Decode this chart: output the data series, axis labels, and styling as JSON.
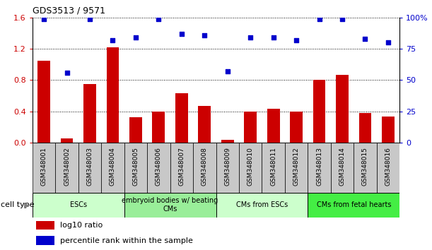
{
  "title": "GDS3513 / 9571",
  "categories": [
    "GSM348001",
    "GSM348002",
    "GSM348003",
    "GSM348004",
    "GSM348005",
    "GSM348006",
    "GSM348007",
    "GSM348008",
    "GSM348009",
    "GSM348010",
    "GSM348011",
    "GSM348012",
    "GSM348013",
    "GSM348014",
    "GSM348015",
    "GSM348016"
  ],
  "log10_ratio": [
    1.05,
    0.05,
    0.75,
    1.22,
    0.32,
    0.4,
    0.63,
    0.47,
    0.03,
    0.4,
    0.43,
    0.4,
    0.8,
    0.87,
    0.38,
    0.33
  ],
  "percentile_rank": [
    99,
    56,
    99,
    82,
    84,
    99,
    87,
    86,
    57,
    84,
    84,
    82,
    99,
    99,
    83,
    80
  ],
  "bar_color": "#cc0000",
  "dot_color": "#0000cc",
  "ylim_left": [
    0,
    1.6
  ],
  "ylim_right": [
    0,
    100
  ],
  "yticks_left": [
    0,
    0.4,
    0.8,
    1.2,
    1.6
  ],
  "yticks_right": [
    0,
    25,
    50,
    75,
    100
  ],
  "ytick_labels_right": [
    "0",
    "25",
    "50",
    "75",
    "100%"
  ],
  "cell_type_groups": [
    {
      "label": "ESCs",
      "start": 0,
      "end": 3,
      "color": "#ccffcc"
    },
    {
      "label": "embryoid bodies w/ beating\nCMs",
      "start": 4,
      "end": 7,
      "color": "#99ee99"
    },
    {
      "label": "CMs from ESCs",
      "start": 8,
      "end": 11,
      "color": "#ccffcc"
    },
    {
      "label": "CMs from fetal hearts",
      "start": 12,
      "end": 15,
      "color": "#44ee44"
    }
  ],
  "legend_items": [
    {
      "label": "log10 ratio",
      "color": "#cc0000"
    },
    {
      "label": "percentile rank within the sample",
      "color": "#0000cc"
    }
  ],
  "cell_type_label": "cell type",
  "bar_width": 0.55,
  "xtick_box_color": "#c8c8c8",
  "grid_color": "black"
}
